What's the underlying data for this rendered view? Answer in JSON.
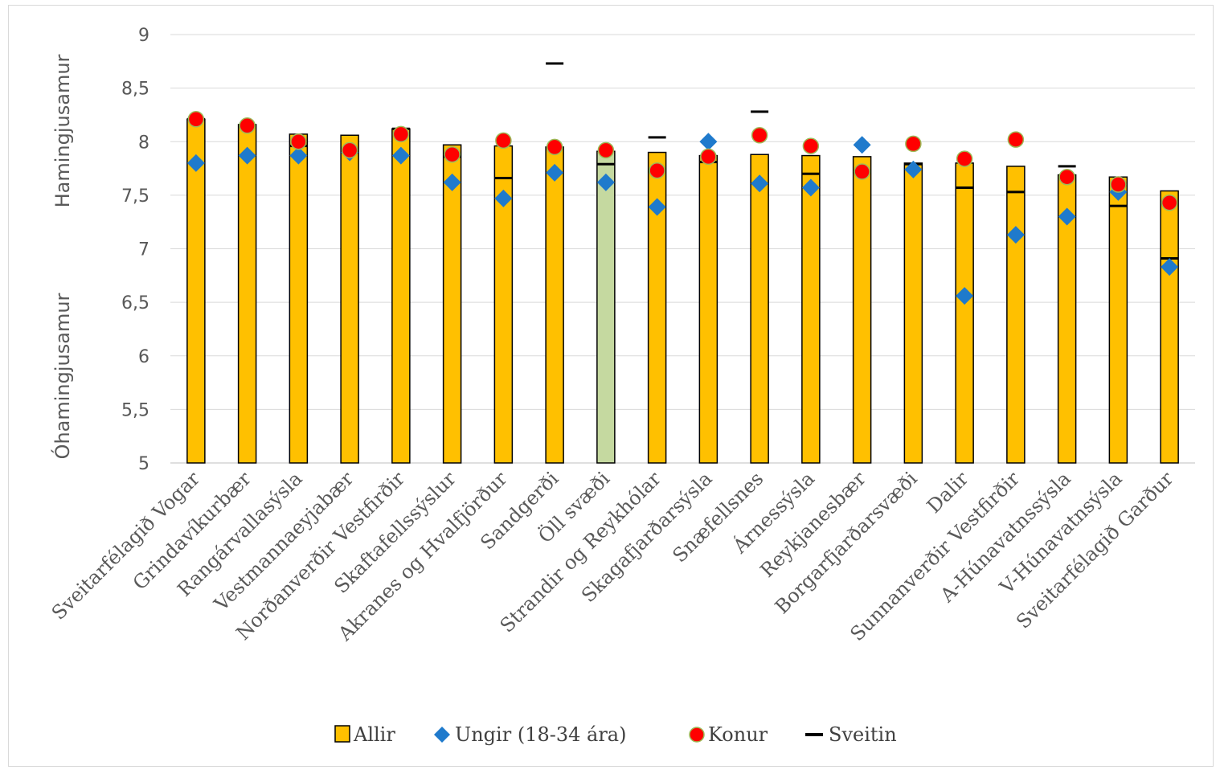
{
  "chart_data": {
    "type": "bar",
    "title": "",
    "ylabel_top": "Hamingjusamur",
    "ylabel_bottom": "Óhamingjusamur",
    "ylim": [
      5,
      9
    ],
    "yticks": [
      "5",
      "5,5",
      "6",
      "6,5",
      "7",
      "7,5",
      "8",
      "8,5",
      "9"
    ],
    "ytick_values": [
      5,
      5.5,
      6,
      6.5,
      7,
      7.5,
      8,
      8.5,
      9
    ],
    "grid": true,
    "legend_position": "bottom",
    "categories": [
      "Sveitarfélagið Vogar",
      "Grindavíkurbær",
      "Rangárvallasýsla",
      "Vestmannaeyjabær",
      "Norðanverðir Vestfirðir",
      "Skaftafellssýslur",
      "Akranes og Hvalfjörður",
      "Sandgerði",
      "Öll svæði",
      "Strandir og Reykhólar",
      "Skagafjarðarsýsla",
      "Snæfellsnes",
      "Árnessýsla",
      "Reykjanesbær",
      "Borgarfjarðarsvæði",
      "Dalir",
      "Sunnanverðir Vestfirðir",
      "A-Húnavatnssýsla",
      "V-Húnavatnsýsla",
      "Sveitarfélagið Garður"
    ],
    "highlight_category_index": 8,
    "series": [
      {
        "name": "Allir",
        "kind": "bar",
        "color": "#FFC000",
        "highlight_color": "#C5D9A0",
        "values": [
          8.21,
          8.16,
          8.07,
          8.06,
          8.12,
          7.97,
          7.96,
          7.95,
          7.91,
          7.9,
          7.87,
          7.88,
          7.87,
          7.86,
          7.8,
          7.8,
          7.77,
          7.69,
          7.67,
          7.54
        ]
      },
      {
        "name": "Ungir (18-34 ára)",
        "kind": "diamond",
        "color": "#1F7ACC",
        "values": [
          7.8,
          7.87,
          7.87,
          7.9,
          7.87,
          7.62,
          7.47,
          7.71,
          7.62,
          7.39,
          8.0,
          7.61,
          7.57,
          7.97,
          7.74,
          6.56,
          7.13,
          7.3,
          7.53,
          6.83
        ]
      },
      {
        "name": "Konur",
        "kind": "circle",
        "color": "#FF0000",
        "values": [
          8.21,
          8.15,
          8.0,
          7.92,
          8.07,
          7.88,
          8.01,
          7.95,
          7.92,
          7.73,
          7.86,
          8.06,
          7.96,
          7.72,
          7.98,
          7.84,
          8.02,
          7.67,
          7.6,
          7.43
        ]
      },
      {
        "name": "Sveitin",
        "kind": "dash",
        "color": "#000000",
        "values": [
          8.21,
          null,
          7.96,
          null,
          8.12,
          7.86,
          7.66,
          8.73,
          7.79,
          8.04,
          7.81,
          8.28,
          7.7,
          null,
          7.79,
          7.57,
          7.53,
          7.77,
          7.4,
          6.91
        ]
      }
    ]
  }
}
